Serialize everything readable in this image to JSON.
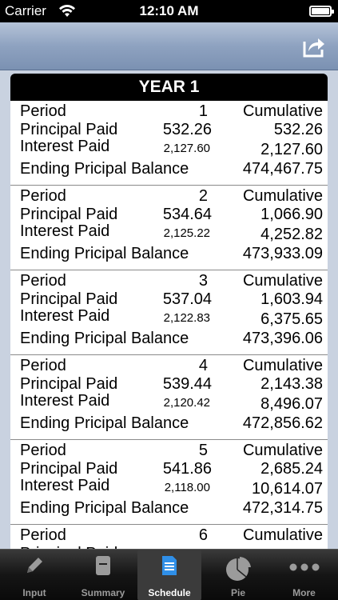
{
  "status": {
    "carrier": "Carrier",
    "time": "12:10 AM"
  },
  "year_title": "YEAR 1",
  "labels": {
    "period": "Period",
    "principal": "Principal Paid",
    "interest": "Interest Paid",
    "ending": "Ending Pricipal Balance",
    "cumulative": "Cumulative"
  },
  "periods": [
    {
      "period": "1",
      "principal": "532.26",
      "interest": "2,127.60",
      "cum_principal": "532.26",
      "cum_interest": "2,127.60",
      "ending": "474,467.75"
    },
    {
      "period": "2",
      "principal": "534.64",
      "interest": "2,125.22",
      "cum_principal": "1,066.90",
      "cum_interest": "4,252.82",
      "ending": "473,933.09"
    },
    {
      "period": "3",
      "principal": "537.04",
      "interest": "2,122.83",
      "cum_principal": "1,603.94",
      "cum_interest": "6,375.65",
      "ending": "473,396.06"
    },
    {
      "period": "4",
      "principal": "539.44",
      "interest": "2,120.42",
      "cum_principal": "2,143.38",
      "cum_interest": "8,496.07",
      "ending": "472,856.62"
    },
    {
      "period": "5",
      "principal": "541.86",
      "interest": "2,118.00",
      "cum_principal": "2,685.24",
      "cum_interest": "10,614.07",
      "ending": "472,314.75"
    },
    {
      "period": "6",
      "principal": "",
      "interest": "",
      "cum_principal": "",
      "cum_interest": "",
      "ending": ""
    }
  ],
  "tabs": [
    {
      "label": "Input",
      "icon": "pencil-icon",
      "active": false
    },
    {
      "label": "Summary",
      "icon": "document-icon",
      "active": false
    },
    {
      "label": "Schedule",
      "icon": "list-document-icon",
      "active": true
    },
    {
      "label": "Pie",
      "icon": "pie-chart-icon",
      "active": false
    },
    {
      "label": "More",
      "icon": "more-dots-icon",
      "active": false
    }
  ]
}
